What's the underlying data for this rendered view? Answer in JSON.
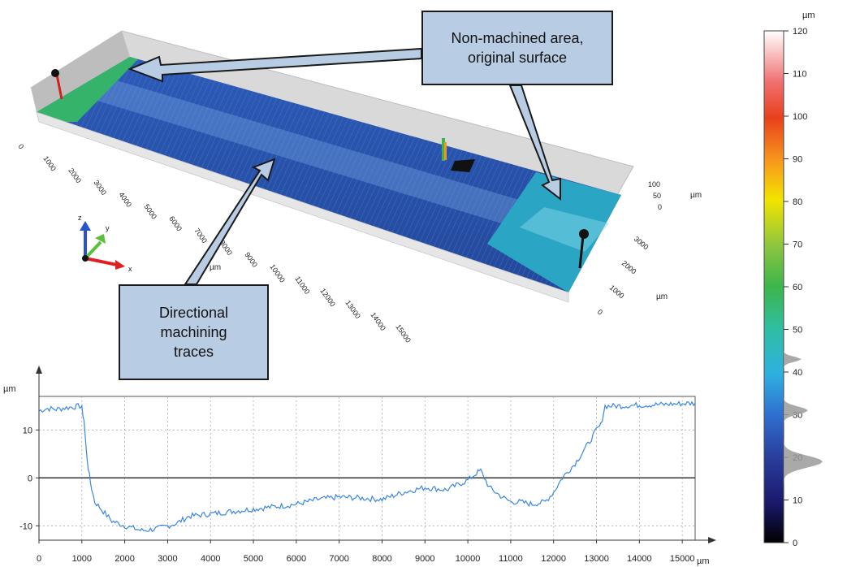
{
  "callouts": {
    "top": {
      "line1": "Non-machined area,",
      "line2": "original surface"
    },
    "bottom": {
      "line1": "Directional",
      "line2": "machining",
      "line3": "traces"
    }
  },
  "surface_3d": {
    "x_unit": "µm",
    "x_ticks": [
      "0",
      "1000",
      "2000",
      "3000",
      "4000",
      "5000",
      "6000",
      "7000",
      "8000",
      "9000",
      "10000",
      "11000",
      "12000",
      "13000",
      "14000",
      "15000"
    ],
    "y_unit": "µm",
    "y_ticks": [
      "0",
      "1000",
      "2000",
      "3000"
    ],
    "z_unit": "µm",
    "z_ticks": [
      "0",
      "50",
      "100"
    ],
    "axis_triad": {
      "x": "x",
      "y": "y",
      "z": "z"
    },
    "colors": {
      "machined": "#2f5fbf",
      "original": "#2aa6c4",
      "left_end": "#35b36a"
    }
  },
  "color_scale": {
    "unit": "µm",
    "ticks": [
      "0",
      "10",
      "20",
      "30",
      "40",
      "50",
      "60",
      "70",
      "80",
      "90",
      "100",
      "110",
      "120"
    ],
    "min": 0,
    "max": 120,
    "histogram_peaks_um": [
      19,
      31,
      43
    ]
  },
  "chart_data": {
    "type": "line",
    "title": "",
    "xlabel": "µm",
    "ylabel": "µm",
    "xlim": [
      0,
      15300
    ],
    "ylim": [
      -13,
      17
    ],
    "x_ticks": [
      0,
      1000,
      2000,
      3000,
      4000,
      5000,
      6000,
      7000,
      8000,
      9000,
      10000,
      11000,
      12000,
      13000,
      14000,
      15000
    ],
    "y_ticks": [
      -10,
      0,
      10
    ],
    "grid": true,
    "series": [
      {
        "color": "#3a86e0",
        "x": [
          0,
          200,
          400,
          600,
          800,
          950,
          1000,
          1050,
          1100,
          1150,
          1200,
          1300,
          1500,
          1700,
          2000,
          2200,
          2400,
          2600,
          2800,
          3000,
          3200,
          3500,
          4000,
          4500,
          5000,
          5500,
          6000,
          6500,
          7000,
          7500,
          8000,
          8500,
          9000,
          9500,
          10000,
          10200,
          10300,
          10500,
          10800,
          11000,
          11200,
          11500,
          11800,
          12000,
          12200,
          12500,
          12800,
          13000,
          13100,
          13200,
          13500,
          14000,
          14500,
          15000,
          15300
        ],
        "y": [
          14,
          14.5,
          14.3,
          14.6,
          14.8,
          15,
          14.5,
          12,
          6,
          2,
          -1,
          -5,
          -7,
          -9,
          -10,
          -10.5,
          -11,
          -10.8,
          -10.5,
          -10,
          -9.5,
          -8,
          -7.5,
          -7,
          -6.5,
          -6,
          -5.5,
          -4.5,
          -4,
          -4.2,
          -4.5,
          -3,
          -2,
          -2.5,
          -0.5,
          1,
          1.5,
          -2,
          -4,
          -5,
          -5,
          -5.5,
          -5,
          -3,
          0,
          3,
          7,
          10,
          11,
          15,
          15,
          15.2,
          15.3,
          15.5,
          15.6
        ]
      }
    ]
  }
}
